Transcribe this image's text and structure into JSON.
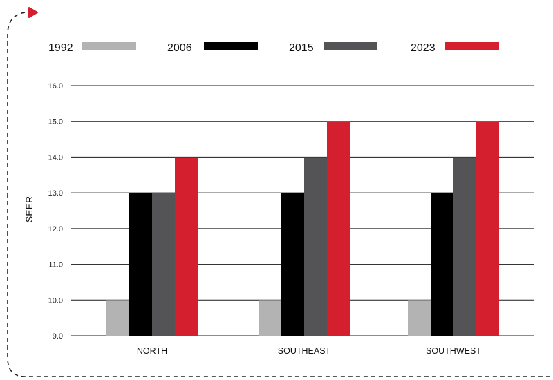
{
  "chart_data": {
    "type": "bar",
    "xlabel": "",
    "ylabel": "SEER",
    "ylim": [
      9.0,
      16.0
    ],
    "yticks": [
      "9.0",
      "10.0",
      "11.0",
      "12.0",
      "13.0",
      "14.0",
      "15.0",
      "16.0"
    ],
    "categories": [
      "NORTH",
      "SOUTHEAST",
      "SOUTHWEST"
    ],
    "series": [
      {
        "name": "1992",
        "color": "#b3b3b3",
        "values": [
          10.0,
          10.0,
          10.0
        ]
      },
      {
        "name": "2006",
        "color": "#000000",
        "values": [
          13.0,
          13.0,
          13.0
        ]
      },
      {
        "name": "2015",
        "color": "#545457",
        "values": [
          13.0,
          14.0,
          14.0
        ]
      },
      {
        "name": "2023",
        "color": "#d41f2f",
        "values": [
          14.0,
          15.0,
          15.0
        ]
      }
    ],
    "grid": true,
    "legend_position": "top"
  },
  "decor": {
    "frame_color": "#222222",
    "arrow_color": "#d41f2f"
  }
}
